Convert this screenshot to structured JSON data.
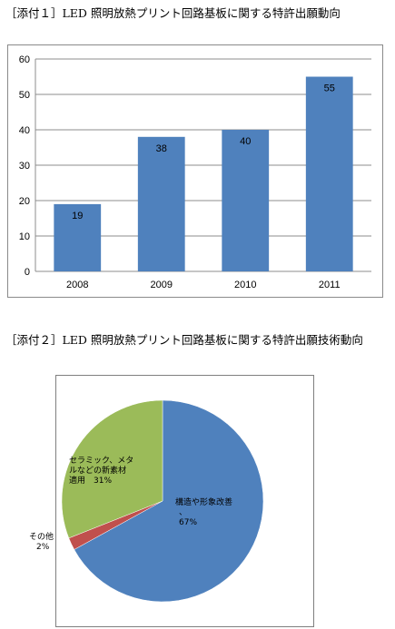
{
  "captions": {
    "chart1": "［添付１］LED 照明放熱プリント回路基板に関する特許出願動向",
    "chart2": "［添付２］LED 照明放熱プリント回路基板に関する特許出願技術動向"
  },
  "chart_data": [
    {
      "type": "bar",
      "categories": [
        "2008",
        "2009",
        "2010",
        "2011"
      ],
      "values": [
        19,
        38,
        40,
        55
      ],
      "data_labels": [
        "19",
        "38",
        "40",
        "55"
      ],
      "ylim": [
        0,
        60
      ],
      "yticks": [
        0,
        10,
        20,
        30,
        40,
        50,
        60
      ],
      "ytick_labels": [
        "0",
        "10",
        "20",
        "30",
        "40",
        "50",
        "60"
      ],
      "grid": true,
      "colors": {
        "bar": "#4f81bd",
        "grid": "#8c8c8c"
      }
    },
    {
      "type": "pie",
      "slices": [
        {
          "label_lines": [
            "構造や形象改善",
            "、",
            "67%"
          ],
          "value": 67,
          "color": "#4f81bd"
        },
        {
          "label_lines": [
            "その他",
            "2%"
          ],
          "value": 2,
          "color": "#c0504d"
        },
        {
          "label_lines": [
            "セラミック、メタ",
            "ルなどの新素材",
            "適用　31%"
          ],
          "value": 31,
          "color": "#9bbb59"
        }
      ]
    }
  ]
}
